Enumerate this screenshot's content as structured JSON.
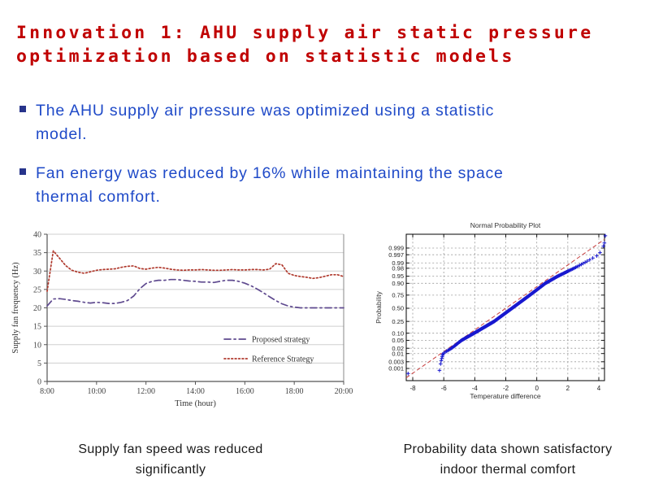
{
  "slide": {
    "title": {
      "lines": [
        "Innovation 1: AHU supply air static pressure",
        "optimization based on statistic models"
      ],
      "color": "#c00000"
    },
    "bullets": [
      {
        "lines": [
          "The AHU supply air pressure was optimized using a statistic",
          "model."
        ]
      },
      {
        "lines": [
          "Fan energy was reduced by 16% while maintaining the space",
          "thermal comfort."
        ]
      }
    ],
    "bullet_text_color": "#1f4ac8",
    "bullet_marker_color": "#27348b",
    "captions": {
      "left": {
        "lines": [
          "Supply fan speed was reduced",
          "significantly"
        ]
      },
      "right": {
        "lines": [
          "Probability data shown satisfactory",
          "indoor thermal comfort"
        ]
      }
    }
  },
  "chart_data": [
    {
      "type": "line",
      "title": "",
      "xlabel": "Time (hour)",
      "ylabel": "Supply fan frequency (Hz)",
      "x_tick_labels": [
        "8:00",
        "10:00",
        "12:00",
        "14:00",
        "16:00",
        "18:00",
        "20:00"
      ],
      "x_tick_hours": [
        8,
        10,
        12,
        14,
        16,
        18,
        20
      ],
      "y_ticks": [
        0,
        5,
        10,
        15,
        20,
        25,
        30,
        35,
        40
      ],
      "ylim": [
        0,
        40
      ],
      "xlim_hours": [
        8,
        20
      ],
      "x_start_hour": 8,
      "x_step_hours": 0.25,
      "grid": "horizontal",
      "legend_position": "inside-right",
      "series": [
        {
          "name": "Proposed strategy",
          "color": "#5f4a8f",
          "dash": "dashdot",
          "values": [
            20.5,
            22.4,
            22.5,
            22.3,
            22.0,
            21.8,
            21.5,
            21.3,
            21.5,
            21.4,
            21.2,
            21.2,
            21.5,
            22.0,
            23.2,
            25.2,
            26.6,
            27.2,
            27.5,
            27.5,
            27.7,
            27.7,
            27.5,
            27.3,
            27.2,
            27.0,
            27.0,
            26.9,
            27.2,
            27.5,
            27.5,
            27.2,
            26.7,
            26.0,
            25.1,
            24.1,
            23.0,
            22.0,
            21.1,
            20.5,
            20.2,
            20.0,
            20.0,
            20.0,
            20.0,
            20.0,
            20.0,
            20.0,
            20.0
          ]
        },
        {
          "name": "Reference Strategy",
          "color": "#b03a2e",
          "dash": "dotted",
          "values": [
            24.5,
            35.5,
            33.5,
            31.5,
            30.2,
            29.7,
            29.4,
            29.8,
            30.2,
            30.4,
            30.5,
            30.6,
            31.0,
            31.3,
            31.4,
            30.7,
            30.5,
            30.8,
            31.0,
            30.8,
            30.5,
            30.3,
            30.2,
            30.3,
            30.3,
            30.4,
            30.3,
            30.2,
            30.2,
            30.3,
            30.4,
            30.3,
            30.3,
            30.4,
            30.4,
            30.3,
            30.5,
            32.0,
            31.7,
            29.4,
            28.8,
            28.5,
            28.3,
            28.0,
            28.2,
            28.6,
            29.0,
            29.0,
            28.5
          ]
        }
      ]
    },
    {
      "type": "scatter",
      "title": "Normal Probability Plot",
      "xlabel": "Temperature difference",
      "ylabel": "Probability",
      "x_ticks": [
        -8,
        -6,
        -4,
        -2,
        0,
        2,
        4
      ],
      "xlim": [
        -8.42,
        4.37
      ],
      "prob_tick_labels": [
        "0.999",
        "0.997",
        "0.99",
        "0.98",
        "0.95",
        "0.90",
        "0.75",
        "0.50",
        "0.25",
        "0.10",
        "0.05",
        "0.02",
        "0.01",
        "0.003",
        "0.001"
      ],
      "grid": "both-dashed",
      "marker": "+",
      "marker_color": "#1818cf",
      "n_points": 700,
      "quantiles": [
        {
          "p": 0.0005,
          "x": -6.3
        },
        {
          "p": 0.001,
          "x": -6.25
        },
        {
          "p": 0.003,
          "x": -6.18
        },
        {
          "p": 0.01,
          "x": -6.05
        },
        {
          "p": 0.02,
          "x": -5.5
        },
        {
          "p": 0.05,
          "x": -4.85
        },
        {
          "p": 0.1,
          "x": -4.05
        },
        {
          "p": 0.25,
          "x": -2.75
        },
        {
          "p": 0.5,
          "x": -1.6
        },
        {
          "p": 0.75,
          "x": -0.45
        },
        {
          "p": 0.9,
          "x": 0.55
        },
        {
          "p": 0.95,
          "x": 1.35
        },
        {
          "p": 0.98,
          "x": 2.4
        },
        {
          "p": 0.99,
          "x": 3.05
        },
        {
          "p": 0.997,
          "x": 4.0
        },
        {
          "p": 0.999,
          "x": 4.25
        },
        {
          "p": 0.9995,
          "x": 4.35
        }
      ],
      "extreme_points": [
        {
          "x": 4.42,
          "p": 0.9999
        },
        {
          "x": 4.36,
          "p": 0.9996
        }
      ],
      "outlier": {
        "x": -8.3,
        "p": 0.0004
      },
      "fit_line": {
        "color": "#c84040",
        "style": "dashed",
        "mu": -2.0,
        "sigma": 1.8
      }
    }
  ]
}
